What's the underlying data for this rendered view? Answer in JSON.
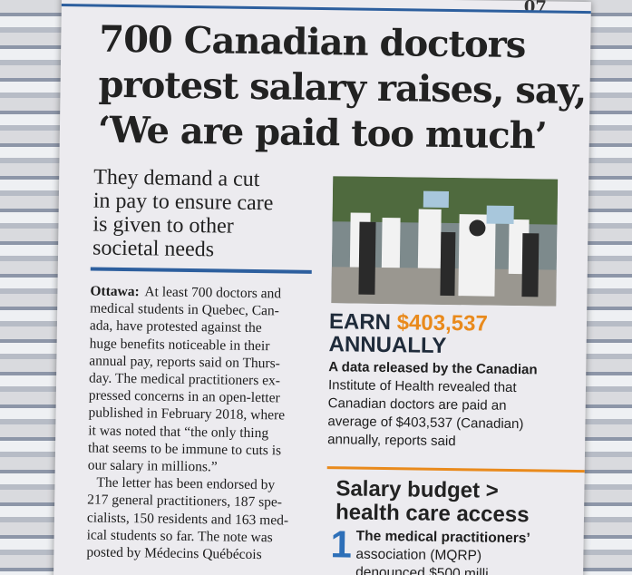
{
  "page_number": "07",
  "headline": {
    "lines": [
      "700 Canadian doctors",
      "protest salary raises, say,",
      "‘We are paid too much’"
    ]
  },
  "subhead": {
    "lines": [
      "They demand a cut",
      "in pay to ensure care",
      "is given to other",
      "societal needs"
    ]
  },
  "body": {
    "dateline": "Ottawa:",
    "lines": [
      "At least 700 doctors and",
      "medical students in Quebec, Can-",
      "ada, have protested against the",
      "huge benefits noticeable in their",
      "annual pay, reports said on Thurs-",
      "day. The medical practitioners ex-",
      "pressed concerns in an open-letter",
      "published in February 2018, where",
      "it was noted that “the only thing",
      "that seems to be immune to cuts is",
      "our salary in millions.”",
      "The letter has been endorsed by",
      "217 general practitioners, 187 spe-",
      "cialists, 150 residents and 163 med-",
      "ical students so far. The note was",
      "posted by Médecins Québécois"
    ]
  },
  "highlight": {
    "prefix": "EARN",
    "amount": "$403,537",
    "suffix": "ANNUALLY"
  },
  "info": {
    "lines": [
      "A data released by the Canadian",
      "Institute of Health revealed that",
      "Canadian doctors are paid an",
      "average of $403,537 (Canadian)",
      "annually, reports said"
    ]
  },
  "section": {
    "title_lines": [
      "Salary budget >",
      "health care access"
    ],
    "number": "1",
    "lines": [
      "The medical practitioners’",
      "association (MQRP)",
      "denounced $500 milli"
    ]
  }
}
